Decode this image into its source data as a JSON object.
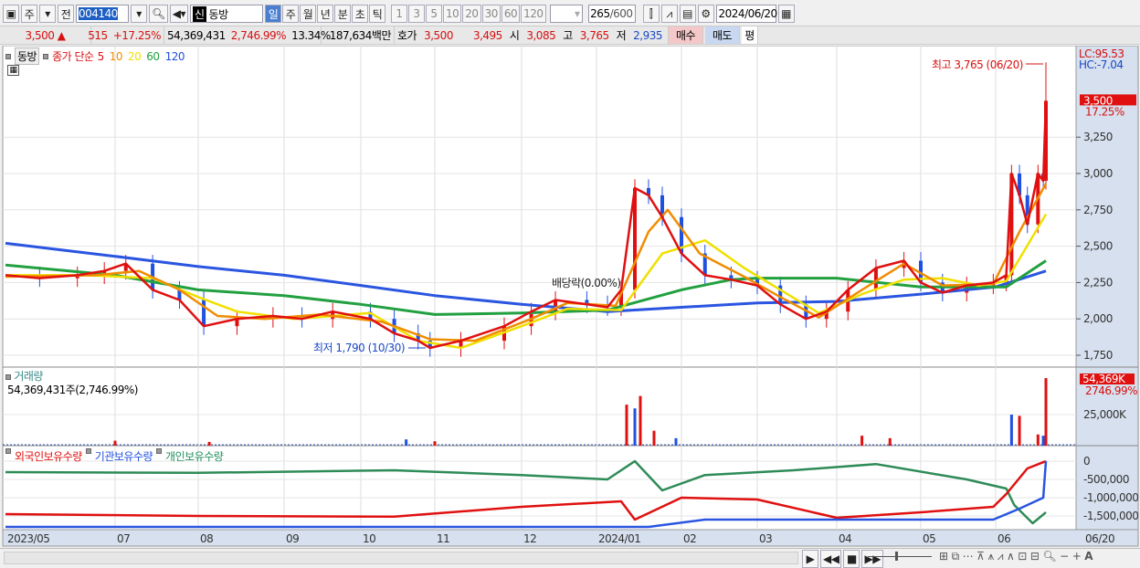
{
  "toolbar": {
    "period_type": "주",
    "prev": "전",
    "code": "004140",
    "name_badge": "신",
    "name": "동방",
    "periods": [
      "일",
      "주",
      "월",
      "년",
      "분",
      "초",
      "틱"
    ],
    "active_period": "일",
    "ticks": [
      "1",
      "3",
      "5",
      "10",
      "20",
      "30",
      "60",
      "120"
    ],
    "count": "265",
    "count_total": "/600",
    "date": "2024/06/20"
  },
  "quote": {
    "price": "3,500 ▲",
    "change": "515",
    "pct": "+17.25%",
    "volume": "54,369,431",
    "vol_pct": "2,746.99%",
    "turnover": "13.34%",
    "amount": "187,634백만",
    "hoga_label": "호가",
    "ask": "3,500",
    "bid": "3,495",
    "open_label": "시",
    "open": "3,085",
    "high_label": "고",
    "high": "3,765",
    "low_label": "저",
    "low": "2,935",
    "buy": "매수",
    "sell": "매도",
    "eval": "평"
  },
  "price_panel": {
    "name": "동방",
    "ma_label": "종가 단순",
    "ma_periods": [
      "5",
      "10",
      "20",
      "60",
      "120"
    ],
    "ma_colors": [
      "#e01010",
      "#f08c00",
      "#f0e000",
      "#20a040",
      "#2050e0"
    ],
    "lc": "LC:95.53",
    "hc": "HC:-7.04",
    "last": "3,500",
    "last_pct": "17.25%",
    "high_note": "최고 3,765 (06/20)",
    "low_note": "최저 1,790 (10/30)",
    "dividend_note": "배당락(0.00%)",
    "yticks": [
      "3,250",
      "3,000",
      "2,750",
      "2,500",
      "2,250",
      "2,000",
      "1,750"
    ]
  },
  "volume_panel": {
    "name": "거래량",
    "value": "54,369,431주(2,746.99%)",
    "last": "54,369K",
    "last_pct": "2746.99%",
    "ytick": "25,000K"
  },
  "holding_panel": {
    "series": [
      "외국인보유수량",
      "기관보유수량",
      "개인보유수량"
    ],
    "colors": [
      "#e01010",
      "#2050e0",
      "#209060"
    ],
    "yticks": [
      "0",
      "-500,000",
      "-1,000,000",
      "-1,500,000"
    ]
  },
  "xaxis": {
    "labels": [
      "2023/05",
      "07",
      "08",
      "09",
      "10",
      "11",
      "12",
      "2024/01",
      "02",
      "03",
      "04",
      "05",
      "06"
    ],
    "last": "06/20"
  },
  "chart_data": {
    "type": "line",
    "close": [
      [
        "2023-05-01",
        2300
      ],
      [
        "2023-05-20",
        2280
      ],
      [
        "2023-06-10",
        2300
      ],
      [
        "2023-06-25",
        2330
      ],
      [
        "2023-07-05",
        2380
      ],
      [
        "2023-07-15",
        2200
      ],
      [
        "2023-07-25",
        2130
      ],
      [
        "2023-08-03",
        1950
      ],
      [
        "2023-08-15",
        2000
      ],
      [
        "2023-08-28",
        2020
      ],
      [
        "2023-09-08",
        2000
      ],
      [
        "2023-09-20",
        2050
      ],
      [
        "2023-10-05",
        2000
      ],
      [
        "2023-10-15",
        1900
      ],
      [
        "2023-10-25",
        1850
      ],
      [
        "2023-10-30",
        1800
      ],
      [
        "2023-11-10",
        1850
      ],
      [
        "2023-11-25",
        1950
      ],
      [
        "2023-12-05",
        2050
      ],
      [
        "2023-12-15",
        2130
      ],
      [
        "2023-12-28",
        2100
      ],
      [
        "2024-01-05",
        2080
      ],
      [
        "2024-01-10",
        2200
      ],
      [
        "2024-01-15",
        2900
      ],
      [
        "2024-01-20",
        2850
      ],
      [
        "2024-01-25",
        2700
      ],
      [
        "2024-02-01",
        2450
      ],
      [
        "2024-02-10",
        2300
      ],
      [
        "2024-02-20",
        2270
      ],
      [
        "2024-03-01",
        2230
      ],
      [
        "2024-03-10",
        2100
      ],
      [
        "2024-03-20",
        2000
      ],
      [
        "2024-03-28",
        2050
      ],
      [
        "2024-04-05",
        2200
      ],
      [
        "2024-04-15",
        2350
      ],
      [
        "2024-04-25",
        2400
      ],
      [
        "2024-05-01",
        2250
      ],
      [
        "2024-05-10",
        2180
      ],
      [
        "2024-05-20",
        2230
      ],
      [
        "2024-05-31",
        2250
      ],
      [
        "2024-06-05",
        2300
      ],
      [
        "2024-06-07",
        3000
      ],
      [
        "2024-06-10",
        2850
      ],
      [
        "2024-06-13",
        2650
      ],
      [
        "2024-06-17",
        3000
      ],
      [
        "2024-06-19",
        2950
      ],
      [
        "2024-06-20",
        3500
      ]
    ],
    "ma10": [
      [
        "2023-05-01",
        2290
      ],
      [
        "2023-06-20",
        2300
      ],
      [
        "2023-07-10",
        2330
      ],
      [
        "2023-07-25",
        2200
      ],
      [
        "2023-08-08",
        2020
      ],
      [
        "2023-08-25",
        2000
      ],
      [
        "2023-09-15",
        2030
      ],
      [
        "2023-10-10",
        1980
      ],
      [
        "2023-10-30",
        1860
      ],
      [
        "2023-11-15",
        1850
      ],
      [
        "2023-12-05",
        2000
      ],
      [
        "2023-12-20",
        2110
      ],
      [
        "2024-01-08",
        2090
      ],
      [
        "2024-01-20",
        2600
      ],
      [
        "2024-01-27",
        2750
      ],
      [
        "2024-02-08",
        2450
      ],
      [
        "2024-02-25",
        2290
      ],
      [
        "2024-03-10",
        2150
      ],
      [
        "2024-03-25",
        2010
      ],
      [
        "2024-04-10",
        2200
      ],
      [
        "2024-04-25",
        2380
      ],
      [
        "2024-05-10",
        2230
      ],
      [
        "2024-05-31",
        2240
      ],
      [
        "2024-06-10",
        2600
      ],
      [
        "2024-06-20",
        2930
      ]
    ],
    "ma20": [
      [
        "2023-05-01",
        2300
      ],
      [
        "2023-06-15",
        2300
      ],
      [
        "2023-07-15",
        2280
      ],
      [
        "2023-08-01",
        2150
      ],
      [
        "2023-08-15",
        2050
      ],
      [
        "2023-09-05",
        2000
      ],
      [
        "2023-10-05",
        2040
      ],
      [
        "2023-10-25",
        1850
      ],
      [
        "2023-11-10",
        1800
      ],
      [
        "2023-12-01",
        1950
      ],
      [
        "2023-12-20",
        2070
      ],
      [
        "2024-01-10",
        2060
      ],
      [
        "2024-01-25",
        2450
      ],
      [
        "2024-02-10",
        2540
      ],
      [
        "2024-02-25",
        2350
      ],
      [
        "2024-03-10",
        2200
      ],
      [
        "2024-03-25",
        2040
      ],
      [
        "2024-04-10",
        2170
      ],
      [
        "2024-04-25",
        2270
      ],
      [
        "2024-05-10",
        2280
      ],
      [
        "2024-05-25",
        2230
      ],
      [
        "2024-06-05",
        2260
      ],
      [
        "2024-06-20",
        2720
      ]
    ],
    "ma60": [
      [
        "2023-05-01",
        2370
      ],
      [
        "2023-07-01",
        2300
      ],
      [
        "2023-08-01",
        2200
      ],
      [
        "2023-09-01",
        2160
      ],
      [
        "2023-10-01",
        2100
      ],
      [
        "2023-11-01",
        2030
      ],
      [
        "2023-12-01",
        2040
      ],
      [
        "2024-01-05",
        2060
      ],
      [
        "2024-02-01",
        2200
      ],
      [
        "2024-02-20",
        2270
      ],
      [
        "2024-03-01",
        2280
      ],
      [
        "2024-04-01",
        2280
      ],
      [
        "2024-05-01",
        2220
      ],
      [
        "2024-06-05",
        2220
      ],
      [
        "2024-06-20",
        2400
      ]
    ],
    "ma120": [
      [
        "2023-05-01",
        2520
      ],
      [
        "2023-07-01",
        2430
      ],
      [
        "2023-08-01",
        2360
      ],
      [
        "2023-09-01",
        2300
      ],
      [
        "2023-10-01",
        2230
      ],
      [
        "2023-11-01",
        2160
      ],
      [
        "2023-12-01",
        2100
      ],
      [
        "2024-01-05",
        2050
      ],
      [
        "2024-02-01",
        2080
      ],
      [
        "2024-03-01",
        2110
      ],
      [
        "2024-04-01",
        2120
      ],
      [
        "2024-05-01",
        2170
      ],
      [
        "2024-06-01",
        2220
      ],
      [
        "2024-06-20",
        2330
      ]
    ],
    "volume_k": [
      [
        "2023-07-01",
        4000
      ],
      [
        "2023-08-05",
        3000
      ],
      [
        "2023-10-20",
        5000
      ],
      [
        "2023-11-01",
        3500
      ],
      [
        "2024-01-12",
        33000
      ],
      [
        "2024-01-15",
        30000
      ],
      [
        "2024-01-17",
        40000
      ],
      [
        "2024-01-22",
        12000
      ],
      [
        "2024-01-30",
        6000
      ],
      [
        "2024-04-10",
        8000
      ],
      [
        "2024-04-20",
        6000
      ],
      [
        "2024-06-07",
        25000
      ],
      [
        "2024-06-10",
        24000
      ],
      [
        "2024-06-17",
        9000
      ],
      [
        "2024-06-19",
        8000
      ],
      [
        "2024-06-20",
        54369
      ]
    ],
    "foreign": [
      [
        "2023-05-01",
        -1450000
      ],
      [
        "2023-08-01",
        -1500000
      ],
      [
        "2023-10-15",
        -1520000
      ],
      [
        "2023-12-01",
        -1250000
      ],
      [
        "2024-01-10",
        -1100000
      ],
      [
        "2024-01-15",
        -1600000
      ],
      [
        "2024-02-01",
        -1000000
      ],
      [
        "2024-03-01",
        -1050000
      ],
      [
        "2024-04-01",
        -1550000
      ],
      [
        "2024-05-01",
        -1400000
      ],
      [
        "2024-05-31",
        -1250000
      ],
      [
        "2024-06-05",
        -900000
      ],
      [
        "2024-06-13",
        -200000
      ],
      [
        "2024-06-20",
        0
      ]
    ],
    "institution": [
      [
        "2023-05-01",
        -1800000
      ],
      [
        "2024-01-20",
        -1800000
      ],
      [
        "2024-02-10",
        -1600000
      ],
      [
        "2024-05-31",
        -1600000
      ],
      [
        "2024-06-10",
        -1300000
      ],
      [
        "2024-06-19",
        -1000000
      ],
      [
        "2024-06-20",
        0
      ]
    ],
    "individual": [
      [
        "2023-05-01",
        -300000
      ],
      [
        "2023-08-01",
        -320000
      ],
      [
        "2023-10-15",
        -250000
      ],
      [
        "2023-12-01",
        -380000
      ],
      [
        "2024-01-05",
        -500000
      ],
      [
        "2024-01-15",
        0
      ],
      [
        "2024-01-25",
        -800000
      ],
      [
        "2024-02-10",
        -380000
      ],
      [
        "2024-03-15",
        -250000
      ],
      [
        "2024-04-15",
        -80000
      ],
      [
        "2024-05-20",
        -500000
      ],
      [
        "2024-06-05",
        -750000
      ],
      [
        "2024-06-08",
        -1200000
      ],
      [
        "2024-06-15",
        -1700000
      ],
      [
        "2024-06-20",
        -1400000
      ]
    ]
  }
}
